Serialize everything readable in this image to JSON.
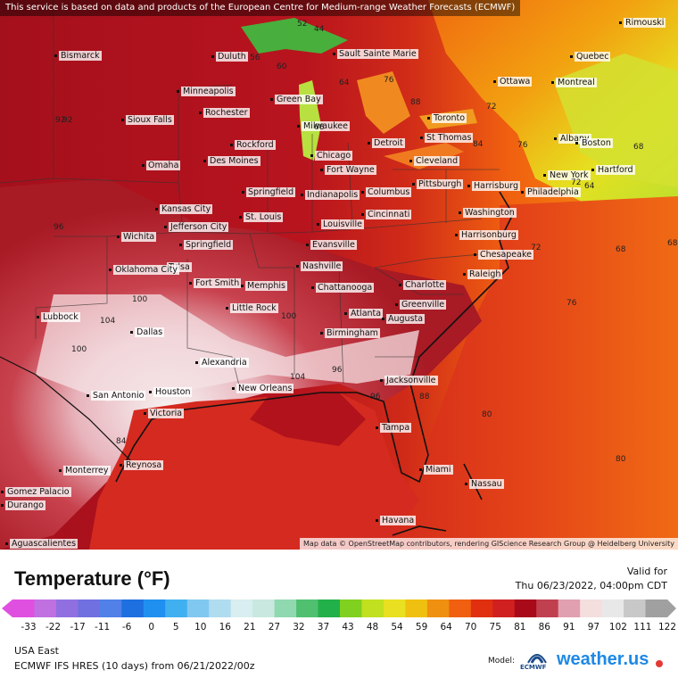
{
  "header": {
    "disclaimer": "This service is based on data and products of the European Centre for Medium-range Weather Forecasts (ECMWF)"
  },
  "map": {
    "attribution": "Map data © OpenStreetMap contributors, rendering GIScience Research Group @ Heidelberg University",
    "cities": [
      {
        "name": "Bismarck"
      },
      {
        "name": "Duluth"
      },
      {
        "name": "Sault Sainte Marie"
      },
      {
        "name": "Rimouski"
      },
      {
        "name": "Quebec"
      },
      {
        "name": "Ottawa"
      },
      {
        "name": "Montreal"
      },
      {
        "name": "Minneapolis"
      },
      {
        "name": "Green Bay"
      },
      {
        "name": "Rochester"
      },
      {
        "name": "Toronto"
      },
      {
        "name": "Sioux Falls"
      },
      {
        "name": "Milwaukee"
      },
      {
        "name": "St Thomas"
      },
      {
        "name": "Albany"
      },
      {
        "name": "Boston"
      },
      {
        "name": "Rockford"
      },
      {
        "name": "Detroit"
      },
      {
        "name": "Chicago"
      },
      {
        "name": "Des Moines"
      },
      {
        "name": "Cleveland"
      },
      {
        "name": "Omaha"
      },
      {
        "name": "Fort Wayne"
      },
      {
        "name": "New York"
      },
      {
        "name": "Hartford"
      },
      {
        "name": "Pittsburgh"
      },
      {
        "name": "Harrisburg"
      },
      {
        "name": "Philadelphia"
      },
      {
        "name": "Springfield"
      },
      {
        "name": "Indianapolis"
      },
      {
        "name": "Columbus"
      },
      {
        "name": "Kansas City"
      },
      {
        "name": "Cincinnati"
      },
      {
        "name": "Washington"
      },
      {
        "name": "St. Louis"
      },
      {
        "name": "Jefferson City"
      },
      {
        "name": "Louisville"
      },
      {
        "name": "Wichita"
      },
      {
        "name": "Springfield"
      },
      {
        "name": "Evansville"
      },
      {
        "name": "Harrisonburg"
      },
      {
        "name": "Chesapeake"
      },
      {
        "name": "Tulsa"
      },
      {
        "name": "Oklahoma City"
      },
      {
        "name": "Nashville"
      },
      {
        "name": "Raleigh"
      },
      {
        "name": "Fort Smith"
      },
      {
        "name": "Memphis"
      },
      {
        "name": "Chattanooga"
      },
      {
        "name": "Charlotte"
      },
      {
        "name": "Little Rock"
      },
      {
        "name": "Greenville"
      },
      {
        "name": "Lubbock"
      },
      {
        "name": "Atlanta"
      },
      {
        "name": "Augusta"
      },
      {
        "name": "Dallas"
      },
      {
        "name": "Birmingham"
      },
      {
        "name": "Alexandria"
      },
      {
        "name": "Jacksonville"
      },
      {
        "name": "San Antonio"
      },
      {
        "name": "Houston"
      },
      {
        "name": "New Orleans"
      },
      {
        "name": "Victoria"
      },
      {
        "name": "Tampa"
      },
      {
        "name": "Reynosa"
      },
      {
        "name": "Monterrey"
      },
      {
        "name": "Miami"
      },
      {
        "name": "Nassau"
      },
      {
        "name": "Gomez Palacio"
      },
      {
        "name": "Durango"
      },
      {
        "name": "Havana"
      },
      {
        "name": "Aguascalientes"
      }
    ],
    "isotherms": [
      "52",
      "44",
      "56",
      "76",
      "64",
      "60",
      "92",
      "68",
      "72",
      "84",
      "76",
      "72",
      "68",
      "88",
      "92",
      "96",
      "100",
      "104",
      "100",
      "104",
      "96",
      "80",
      "76",
      "68",
      "64",
      "72",
      "68",
      "100",
      "96",
      "88",
      "84",
      "80"
    ]
  },
  "legend": {
    "title": "Temperature (°F)",
    "valid_label": "Valid for",
    "valid_time": "Thu 06/23/2022, 04:00pm CDT",
    "ticks": [
      "-33",
      "-22",
      "-17",
      "-11",
      "-6",
      "0",
      "5",
      "10",
      "16",
      "21",
      "27",
      "32",
      "37",
      "43",
      "48",
      "54",
      "59",
      "64",
      "70",
      "75",
      "81",
      "86",
      "91",
      "97",
      "102",
      "111",
      "122"
    ],
    "region": "USA East",
    "model_run": "ECMWF IFS HRES (10 days) from 06/21/2022/00z",
    "model_label": "Model:",
    "model_logo": "ECMWF",
    "brand": "weather.us",
    "colors": {
      "cold": "#e050e0",
      "blue": "#1e6fe0",
      "green": "#22b04a",
      "yellow": "#e8e020",
      "orange": "#f08a10",
      "red": "#d02020",
      "darkred": "#9a0a1a",
      "pink": "#f0c0c8",
      "white": "#f4f4f4"
    }
  }
}
